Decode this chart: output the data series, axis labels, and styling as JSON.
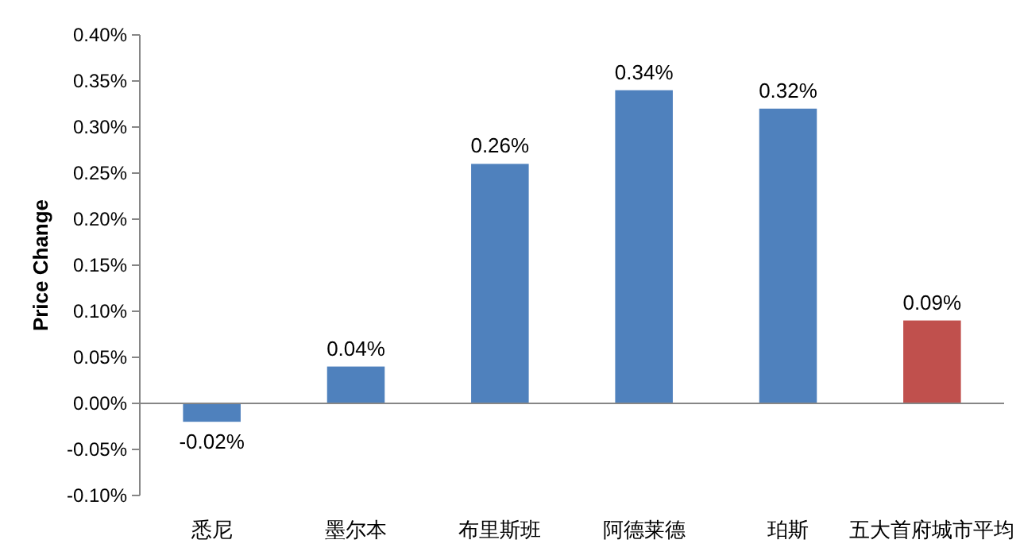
{
  "chart_data": {
    "type": "bar",
    "ylabel": "Price Change",
    "categories": [
      "悉尼",
      "墨尔本",
      "布里斯班",
      "阿德莱德",
      "珀斯",
      "五大首府城市平均"
    ],
    "values": [
      -0.02,
      0.04,
      0.26,
      0.34,
      0.32,
      0.09
    ],
    "value_labels": [
      "-0.02%",
      "0.04%",
      "0.26%",
      "0.34%",
      "0.32%",
      "0.09%"
    ],
    "colors": [
      "#4f81bd",
      "#4f81bd",
      "#4f81bd",
      "#4f81bd",
      "#4f81bd",
      "#c0504d"
    ],
    "ylim": [
      -0.1,
      0.4
    ],
    "yticks": [
      {
        "value": -0.1,
        "label": "-0.10%"
      },
      {
        "value": -0.05,
        "label": "-0.05%"
      },
      {
        "value": 0,
        "label": "0.00%"
      },
      {
        "value": 0.05,
        "label": "0.05%"
      },
      {
        "value": 0.1,
        "label": "0.10%"
      },
      {
        "value": 0.15,
        "label": "0.15%"
      },
      {
        "value": 0.2,
        "label": "0.20%"
      },
      {
        "value": 0.25,
        "label": "0.25%"
      },
      {
        "value": 0.3,
        "label": "0.30%"
      },
      {
        "value": 0.35,
        "label": "0.35%"
      },
      {
        "value": 0.4,
        "label": "0.40%"
      }
    ]
  }
}
